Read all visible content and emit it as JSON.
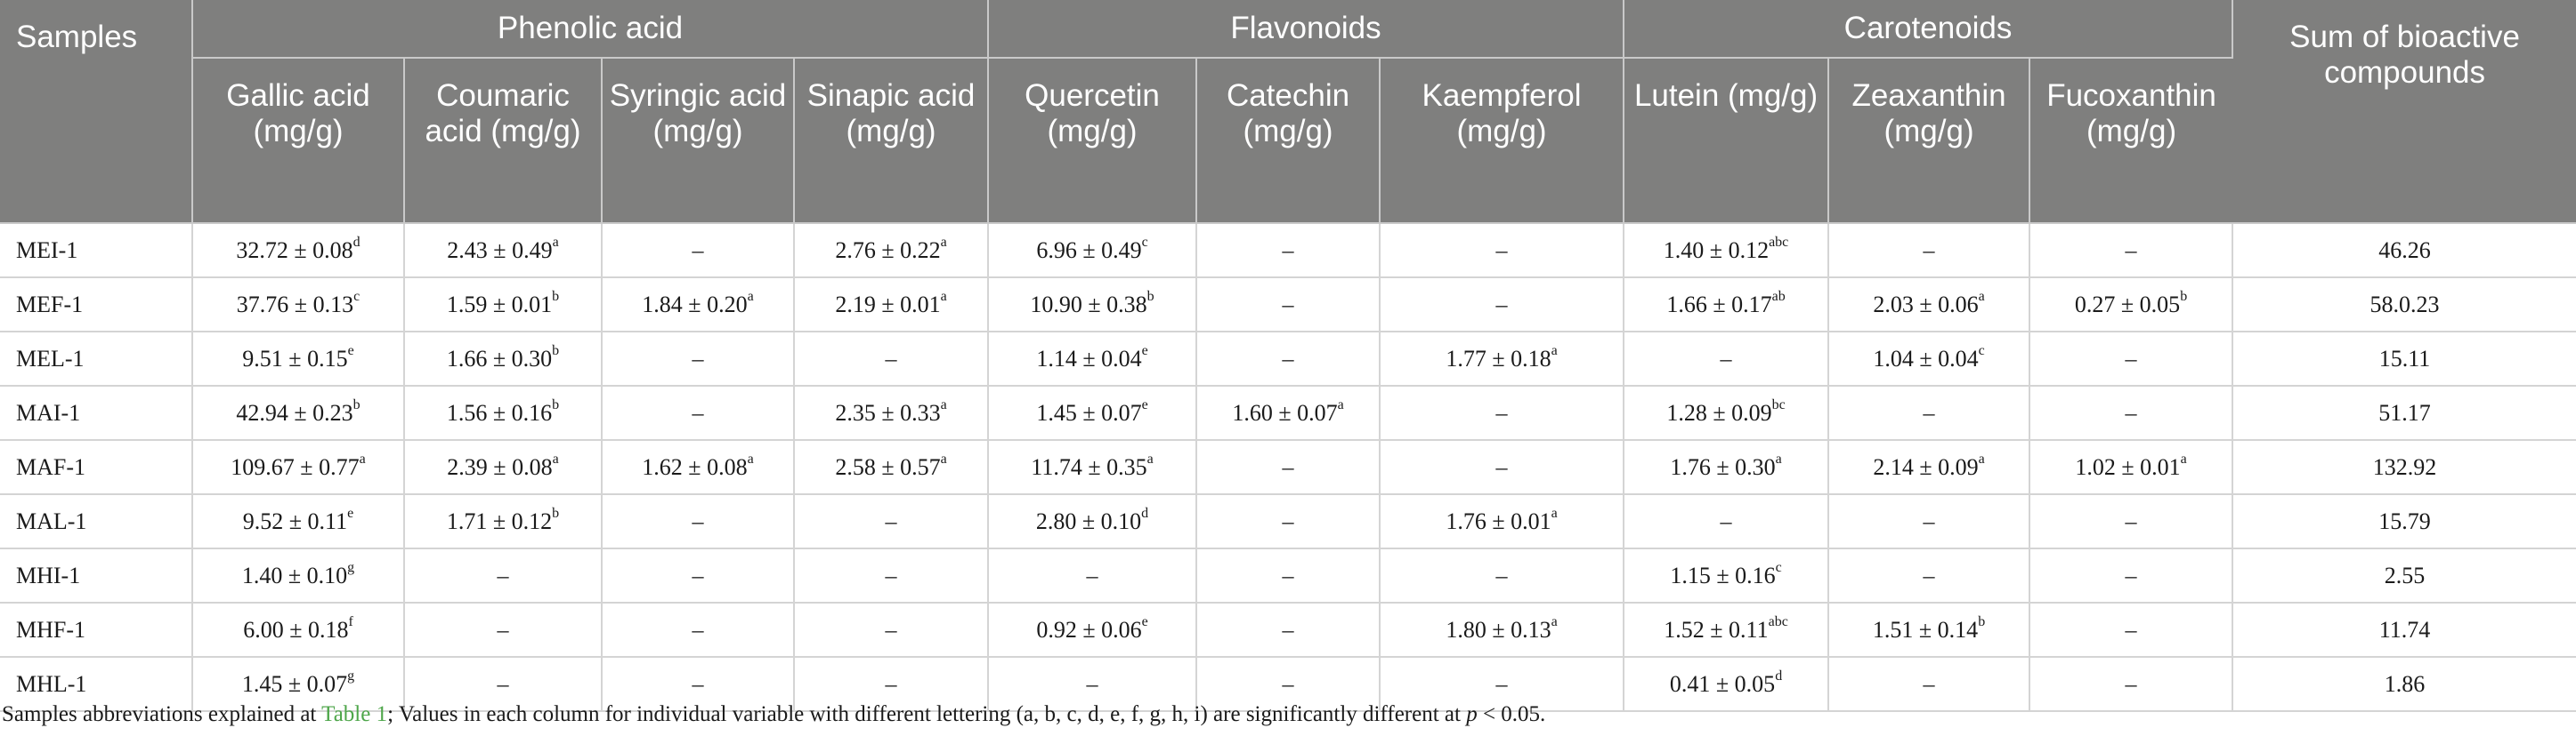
{
  "table": {
    "groups": [
      {
        "label": "Phenolic acid",
        "span": 4
      },
      {
        "label": "Flavonoids",
        "span": 3
      },
      {
        "label": "Carotenoids",
        "span": 3
      }
    ],
    "samples_header": "Samples",
    "sum_header": "Sum of bioactive compounds",
    "columns": [
      "Gallic acid (mg/g)",
      "Coumaric acid (mg/g)",
      "Syringic acid (mg/g)",
      "Sinapic acid (mg/g)",
      "Quercetin (mg/g)",
      "Catechin (mg/g)",
      "Kaempferol (mg/g)",
      "Lutein (mg/g)",
      "Zeaxanthin (mg/g)",
      "Fucoxanthin (mg/g)"
    ],
    "rows": [
      {
        "sample": "MEI-1",
        "cells": [
          [
            "32.72 ± 0.08",
            "d"
          ],
          [
            "2.43 ± 0.49",
            "a"
          ],
          [
            "–",
            ""
          ],
          [
            "2.76 ± 0.22",
            "a"
          ],
          [
            "6.96 ± 0.49",
            "c"
          ],
          [
            "–",
            ""
          ],
          [
            "–",
            ""
          ],
          [
            "1.40 ± 0.12",
            "abc"
          ],
          [
            "–",
            ""
          ],
          [
            "–",
            ""
          ]
        ],
        "sum": "46.26"
      },
      {
        "sample": "MEF-1",
        "cells": [
          [
            "37.76 ± 0.13",
            "c"
          ],
          [
            "1.59 ± 0.01",
            "b"
          ],
          [
            "1.84 ± 0.20",
            "a"
          ],
          [
            "2.19 ± 0.01",
            "a"
          ],
          [
            "10.90 ± 0.38",
            "b"
          ],
          [
            "–",
            ""
          ],
          [
            "–",
            ""
          ],
          [
            "1.66 ± 0.17",
            "ab"
          ],
          [
            "2.03 ± 0.06",
            "a"
          ],
          [
            "0.27 ± 0.05",
            "b"
          ]
        ],
        "sum": "58.0.23"
      },
      {
        "sample": "MEL-1",
        "cells": [
          [
            "9.51 ± 0.15",
            "e"
          ],
          [
            "1.66 ± 0.30",
            "b"
          ],
          [
            "–",
            ""
          ],
          [
            "–",
            ""
          ],
          [
            "1.14 ± 0.04",
            "e"
          ],
          [
            "–",
            ""
          ],
          [
            "1.77 ± 0.18",
            "a"
          ],
          [
            "–",
            ""
          ],
          [
            "1.04 ± 0.04",
            "c"
          ],
          [
            "–",
            ""
          ]
        ],
        "sum": "15.11"
      },
      {
        "sample": "MAI-1",
        "cells": [
          [
            "42.94 ± 0.23",
            "b"
          ],
          [
            "1.56 ± 0.16",
            "b"
          ],
          [
            "–",
            ""
          ],
          [
            "2.35 ± 0.33",
            "a"
          ],
          [
            "1.45 ± 0.07",
            "e"
          ],
          [
            "1.60 ± 0.07",
            "a"
          ],
          [
            "–",
            ""
          ],
          [
            "1.28 ± 0.09",
            "bc"
          ],
          [
            "–",
            ""
          ],
          [
            "–",
            ""
          ]
        ],
        "sum": "51.17"
      },
      {
        "sample": "MAF-1",
        "cells": [
          [
            "109.67 ± 0.77",
            "a"
          ],
          [
            "2.39 ± 0.08",
            "a"
          ],
          [
            "1.62 ± 0.08",
            "a"
          ],
          [
            "2.58 ± 0.57",
            "a"
          ],
          [
            "11.74 ± 0.35",
            "a"
          ],
          [
            "–",
            ""
          ],
          [
            "–",
            ""
          ],
          [
            "1.76 ± 0.30",
            "a"
          ],
          [
            "2.14 ± 0.09",
            "a"
          ],
          [
            "1.02 ± 0.01",
            "a"
          ]
        ],
        "sum": "132.92"
      },
      {
        "sample": "MAL-1",
        "cells": [
          [
            "9.52 ± 0.11",
            "e"
          ],
          [
            "1.71 ± 0.12",
            "b"
          ],
          [
            "–",
            ""
          ],
          [
            "–",
            ""
          ],
          [
            "2.80 ± 0.10",
            "d"
          ],
          [
            "–",
            ""
          ],
          [
            "1.76 ± 0.01",
            "a"
          ],
          [
            "–",
            ""
          ],
          [
            "–",
            ""
          ],
          [
            "–",
            ""
          ]
        ],
        "sum": "15.79"
      },
      {
        "sample": "MHI-1",
        "cells": [
          [
            "1.40 ± 0.10",
            "g"
          ],
          [
            "–",
            ""
          ],
          [
            "–",
            ""
          ],
          [
            "–",
            ""
          ],
          [
            "–",
            ""
          ],
          [
            "–",
            ""
          ],
          [
            "–",
            ""
          ],
          [
            "1.15 ± 0.16",
            "c"
          ],
          [
            "–",
            ""
          ],
          [
            "–",
            ""
          ]
        ],
        "sum": "2.55"
      },
      {
        "sample": "MHF-1",
        "cells": [
          [
            "6.00 ± 0.18",
            "f"
          ],
          [
            "–",
            ""
          ],
          [
            "–",
            ""
          ],
          [
            "–",
            ""
          ],
          [
            "0.92 ± 0.06",
            "e"
          ],
          [
            "–",
            ""
          ],
          [
            "1.80 ± 0.13",
            "a"
          ],
          [
            "1.52 ± 0.11",
            "abc"
          ],
          [
            "1.51 ± 0.14",
            "b"
          ],
          [
            "–",
            ""
          ]
        ],
        "sum": "11.74"
      },
      {
        "sample": "MHL-1",
        "cells": [
          [
            "1.45 ± 0.07",
            "g"
          ],
          [
            "–",
            ""
          ],
          [
            "–",
            ""
          ],
          [
            "–",
            ""
          ],
          [
            "–",
            ""
          ],
          [
            "–",
            ""
          ],
          [
            "–",
            ""
          ],
          [
            "0.41 ± 0.05",
            "d"
          ],
          [
            "–",
            ""
          ],
          [
            "–",
            ""
          ]
        ],
        "sum": "1.86"
      }
    ]
  },
  "footnote": {
    "prefix": "Samples abbreviations explained at ",
    "link": "Table 1",
    "middle": "; Values in each column for individual variable with different lettering (a, b, c, d, e, f, g, h, i) are significantly different at ",
    "p": "p",
    "suffix": " < 0.05."
  }
}
